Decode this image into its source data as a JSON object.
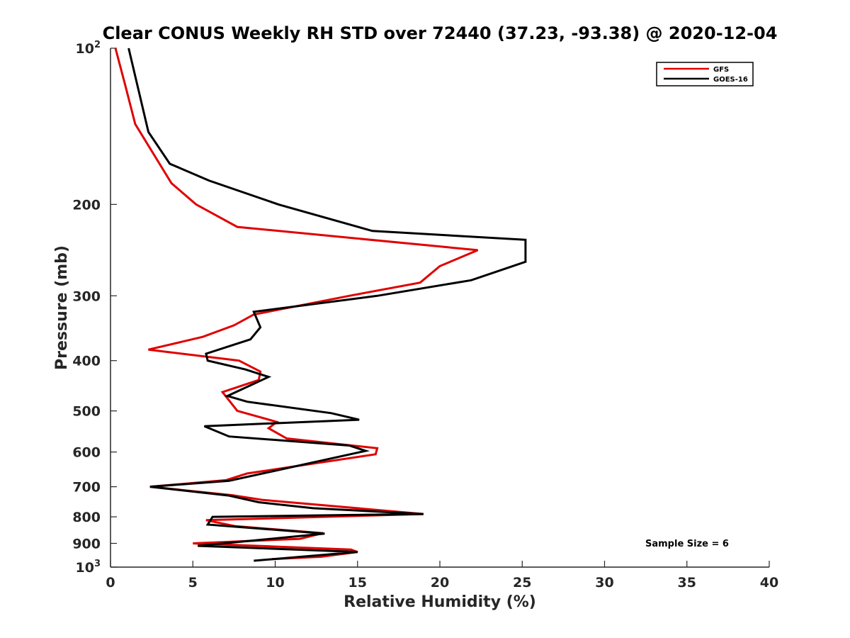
{
  "chart_data": {
    "type": "line",
    "title": "Clear CONUS Weekly RH STD over 72440 (37.23, -93.38) @ 2020-12-04",
    "xlabel": "Relative Humidity (%)",
    "ylabel": "Pressure (mb)",
    "xlim": [
      0,
      40
    ],
    "ylim": [
      1000,
      100
    ],
    "y_scale": "log",
    "y_reversed": true,
    "grid": false,
    "x_ticks": [
      "0",
      "5",
      "10",
      "15",
      "20",
      "25",
      "30",
      "35",
      "40"
    ],
    "y_ticks": [
      {
        "value": 100,
        "base": "10",
        "exp": "2"
      },
      {
        "value": 200,
        "label": "200"
      },
      {
        "value": 300,
        "label": "300"
      },
      {
        "value": 400,
        "label": "400"
      },
      {
        "value": 500,
        "label": "500"
      },
      {
        "value": 600,
        "label": "600"
      },
      {
        "value": 700,
        "label": "700"
      },
      {
        "value": 800,
        "label": "800"
      },
      {
        "value": 900,
        "label": "900"
      },
      {
        "value": 1000,
        "base": "10",
        "exp": "3"
      }
    ],
    "legend_position": "top-right",
    "annotation": "Sample Size = 6",
    "series": [
      {
        "name": "GFS",
        "color": "#e00000",
        "points": [
          [
            0.3,
            100
          ],
          [
            0.9,
            118
          ],
          [
            1.5,
            140
          ],
          [
            3.7,
            182
          ],
          [
            5.2,
            200
          ],
          [
            7.7,
            221
          ],
          [
            22.3,
            245
          ],
          [
            20.0,
            263
          ],
          [
            18.8,
            283
          ],
          [
            14.5,
            300
          ],
          [
            8.7,
            326
          ],
          [
            7.5,
            342
          ],
          [
            5.6,
            360
          ],
          [
            2.3,
            381
          ],
          [
            7.8,
            400
          ],
          [
            9.1,
            420
          ],
          [
            9.0,
            436
          ],
          [
            6.8,
            460
          ],
          [
            7.7,
            500
          ],
          [
            10.1,
            525
          ],
          [
            9.6,
            540
          ],
          [
            10.7,
            565
          ],
          [
            16.2,
            590
          ],
          [
            16.1,
            606
          ],
          [
            8.3,
            660
          ],
          [
            7.0,
            680
          ],
          [
            2.4,
            700
          ],
          [
            7.4,
            727
          ],
          [
            9.2,
            742
          ],
          [
            19.0,
            790
          ],
          [
            5.8,
            812
          ],
          [
            7.6,
            834
          ],
          [
            12.9,
            860
          ],
          [
            11.5,
            882
          ],
          [
            5.0,
            900
          ],
          [
            14.6,
            925
          ],
          [
            15.0,
            935
          ],
          [
            12.8,
            955
          ],
          [
            9.8,
            965
          ]
        ]
      },
      {
        "name": "GOES-16",
        "color": "#000000",
        "points": [
          [
            1.1,
            100
          ],
          [
            2.3,
            145
          ],
          [
            3.6,
            167
          ],
          [
            6.0,
            180
          ],
          [
            10.2,
            200
          ],
          [
            15.9,
            225
          ],
          [
            25.2,
            234
          ],
          [
            25.2,
            258
          ],
          [
            21.9,
            280
          ],
          [
            16.2,
            300
          ],
          [
            8.7,
            322
          ],
          [
            9.1,
            345
          ],
          [
            8.5,
            364
          ],
          [
            5.8,
            388
          ],
          [
            5.9,
            400
          ],
          [
            8.2,
            416
          ],
          [
            9.6,
            430
          ],
          [
            7.1,
            468
          ],
          [
            8.3,
            480
          ],
          [
            13.4,
            505
          ],
          [
            15.1,
            520
          ],
          [
            5.7,
            535
          ],
          [
            7.2,
            560
          ],
          [
            14.5,
            583
          ],
          [
            15.5,
            597
          ],
          [
            7.2,
            682
          ],
          [
            2.4,
            700
          ],
          [
            7.2,
            728
          ],
          [
            9.0,
            750
          ],
          [
            12.3,
            770
          ],
          [
            19.0,
            790
          ],
          [
            6.2,
            800
          ],
          [
            5.9,
            828
          ],
          [
            13.0,
            862
          ],
          [
            5.3,
            910
          ],
          [
            15.0,
            935
          ],
          [
            8.7,
            972
          ]
        ]
      }
    ]
  }
}
